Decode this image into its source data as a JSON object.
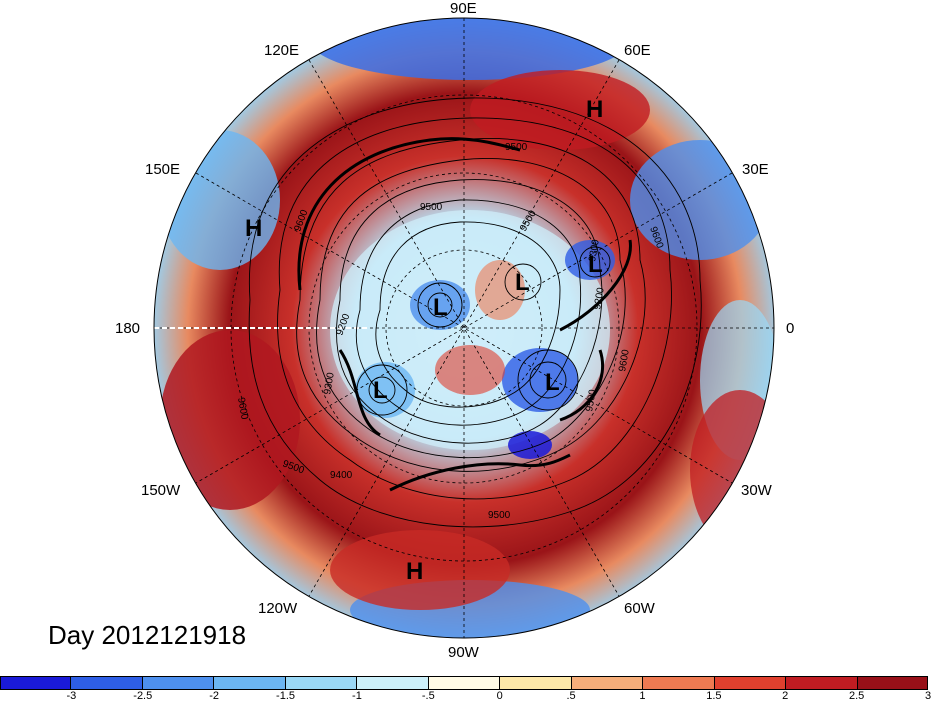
{
  "map": {
    "longitude_labels": [
      {
        "id": "lon-90e",
        "text": "90E"
      },
      {
        "id": "lon-60e",
        "text": "60E"
      },
      {
        "id": "lon-30e",
        "text": "30E"
      },
      {
        "id": "lon-0",
        "text": "0"
      },
      {
        "id": "lon-30w",
        "text": "30W"
      },
      {
        "id": "lon-60w",
        "text": "60W"
      },
      {
        "id": "lon-90w",
        "text": "90W"
      },
      {
        "id": "lon-120w",
        "text": "120W"
      },
      {
        "id": "lon-150w",
        "text": "150W"
      },
      {
        "id": "lon-180",
        "text": "180"
      },
      {
        "id": "lon-150e",
        "text": "150E"
      },
      {
        "id": "lon-120e",
        "text": "120E"
      }
    ],
    "pressure_marks": [
      {
        "id": "high-1",
        "text": "H"
      },
      {
        "id": "high-2",
        "text": "H"
      },
      {
        "id": "high-3",
        "text": "H"
      },
      {
        "id": "low-1",
        "text": "L"
      },
      {
        "id": "low-2",
        "text": "L"
      },
      {
        "id": "low-3",
        "text": "L"
      },
      {
        "id": "low-4",
        "text": "L"
      },
      {
        "id": "low-5",
        "text": "L"
      }
    ],
    "contour_labels": [
      "9500",
      "9500",
      "9600",
      "9500",
      "9600",
      "9200",
      "9300",
      "9600",
      "9200",
      "9600",
      "9500",
      "9400",
      "9500",
      "9300",
      "9500"
    ],
    "day_label": "Day 2012121918"
  },
  "colorbar": {
    "colors": [
      "#1a1ad8",
      "#2e5ee6",
      "#4e90ee",
      "#6cb6f2",
      "#9ad8f6",
      "#ccf0fa",
      "#fffbe6",
      "#fde8a8",
      "#f6ae7a",
      "#ee7a52",
      "#e0402e",
      "#c01c22",
      "#981018"
    ],
    "ticks": [
      "-3",
      "-2.5",
      "-2",
      "-1.5",
      "-1",
      "-.5",
      "0",
      ".5",
      "1",
      "1.5",
      "2",
      "2.5",
      "3"
    ]
  }
}
